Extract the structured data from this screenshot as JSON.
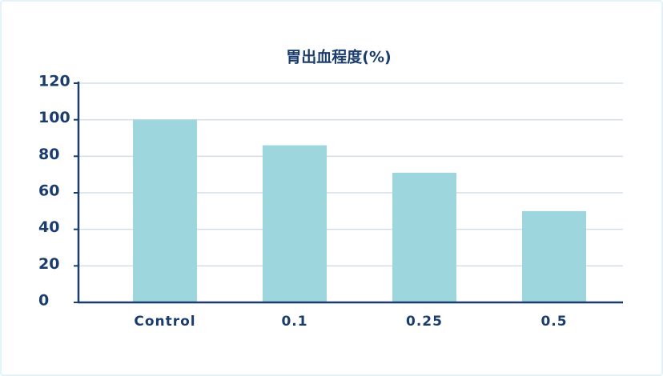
{
  "chart_data": {
    "type": "bar",
    "title": "胃出血程度(%)",
    "categories": [
      "Control",
      "0.1",
      "0.25",
      "0.5"
    ],
    "values": [
      100,
      86,
      71,
      50
    ],
    "color": "#9ed6dd",
    "ylim": [
      0,
      120
    ],
    "yticks": [
      0,
      20,
      40,
      60,
      80,
      100,
      120
    ],
    "grid": true
  }
}
